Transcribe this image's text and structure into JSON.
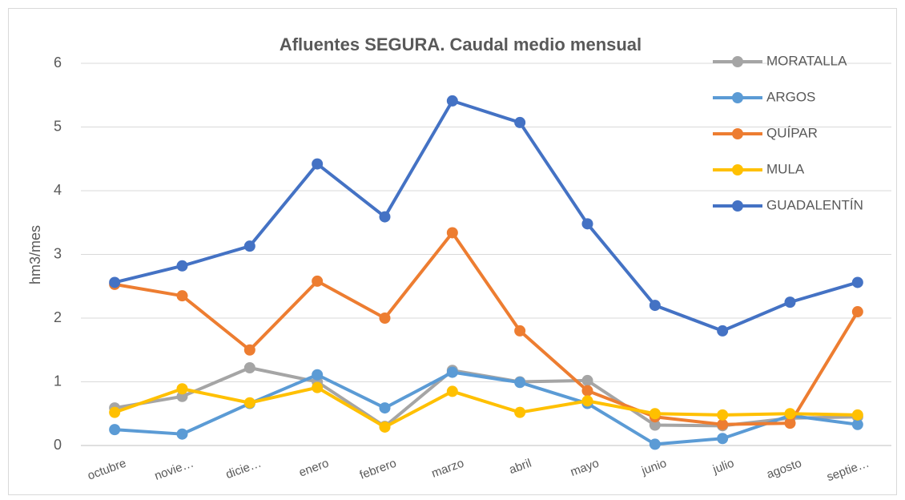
{
  "chart_data": {
    "type": "line",
    "title": "Afluentes SEGURA. Caudal medio mensual",
    "y_label": "hm3/mes",
    "categories": [
      "octubre",
      "novie…",
      "dicie…",
      "enero",
      "febrero",
      "marzo",
      "abril",
      "mayo",
      "junio",
      "julio",
      "agosto",
      "septie…"
    ],
    "series": [
      {
        "name": "MORATALLA",
        "color": "#a5a5a5",
        "values": [
          0.59,
          0.77,
          1.22,
          1.0,
          0.3,
          1.18,
          1.0,
          1.02,
          0.32,
          0.31,
          0.43,
          0.45
        ]
      },
      {
        "name": "ARGOS",
        "color": "#5b9bd5",
        "values": [
          0.25,
          0.18,
          0.66,
          1.11,
          0.59,
          1.15,
          0.99,
          0.66,
          0.02,
          0.11,
          0.47,
          0.33
        ]
      },
      {
        "name": "QUÍPAR",
        "color": "#ed7d31",
        "values": [
          2.53,
          2.35,
          1.5,
          2.58,
          2.0,
          3.34,
          1.8,
          0.86,
          0.45,
          0.33,
          0.35,
          2.1
        ]
      },
      {
        "name": "MULA",
        "color": "#ffc000",
        "values": [
          0.52,
          0.89,
          0.67,
          0.91,
          0.29,
          0.85,
          0.52,
          0.7,
          0.5,
          0.48,
          0.5,
          0.48
        ]
      },
      {
        "name": "GUADALENTÍN",
        "color": "#4472c4",
        "values": [
          2.56,
          2.82,
          3.13,
          4.42,
          3.59,
          5.41,
          5.07,
          3.48,
          2.2,
          1.8,
          2.25,
          2.56
        ]
      }
    ],
    "ylim": [
      0,
      6
    ],
    "yticks": [
      0,
      1,
      2,
      3,
      4,
      5,
      6
    ],
    "grid": true,
    "legend": "top-right"
  }
}
